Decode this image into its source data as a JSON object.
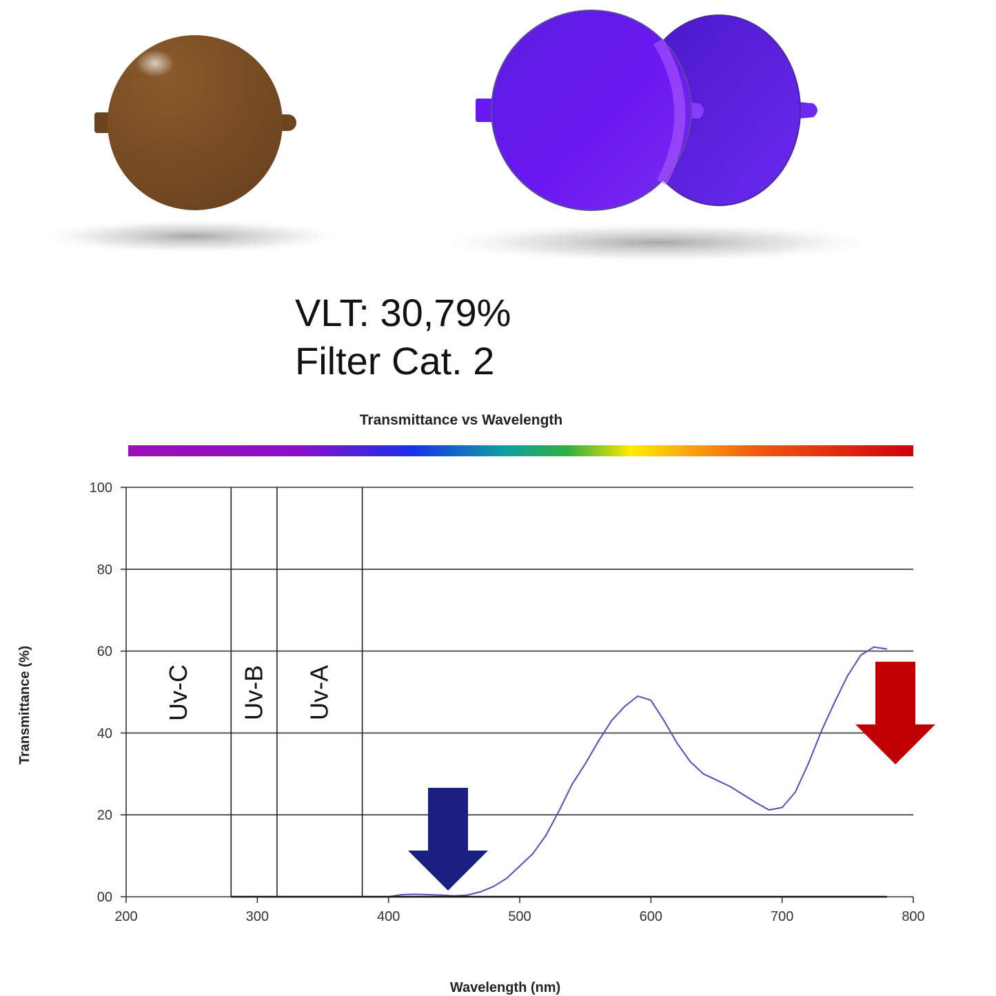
{
  "info": {
    "vlt": "VLT: 30,79%",
    "filter_category": "Filter Cat. 2"
  },
  "lenses": {
    "left_lens_color": "#7a4e22",
    "right_lens_color": "#6a1ef0"
  },
  "markers": {
    "blue_arrow_color": "#1a2080",
    "red_arrow_color": "#c00000"
  },
  "chart_data": {
    "type": "line",
    "title": "Transmittance vs Wavelength",
    "xlabel": "Wavelength (nm)",
    "ylabel": "Transmittance (%)",
    "xlim": [
      200,
      800
    ],
    "ylim": [
      0,
      100
    ],
    "x_ticks": [
      "200",
      "300",
      "400",
      "500",
      "600",
      "700",
      "800"
    ],
    "y_ticks": [
      "00",
      "20",
      "40",
      "60",
      "80",
      "100"
    ],
    "grid": "horizontal",
    "spectrum_bar": true,
    "uv_bands": [
      {
        "label": "Uv-C",
        "from": 200,
        "to": 280
      },
      {
        "label": "Uv-B",
        "from": 280,
        "to": 315
      },
      {
        "label": "Uv-A",
        "from": 315,
        "to": 380
      }
    ],
    "band_boundaries": [
      280,
      315,
      380
    ],
    "series": [
      {
        "color": "#5050b0",
        "x": [
          280,
          300,
          320,
          340,
          360,
          380,
          400,
          410,
          420,
          430,
          440,
          450,
          460,
          470,
          480,
          490,
          500,
          510,
          520,
          530,
          540,
          550,
          560,
          570,
          580,
          590,
          600,
          610,
          620,
          630,
          640,
          650,
          660,
          670,
          680,
          690,
          700,
          710,
          720,
          730,
          740,
          750,
          760,
          770,
          780
        ],
        "y": [
          0,
          0,
          0,
          0,
          0,
          0,
          0,
          0.5,
          0.6,
          0.5,
          0.4,
          0.2,
          0.4,
          1.2,
          2.5,
          4.5,
          7.5,
          10.5,
          15,
          21,
          27.5,
          32.5,
          38,
          43,
          46.5,
          49,
          48,
          43,
          37.5,
          33,
          30,
          28.5,
          27,
          25,
          23,
          21.2,
          21.8,
          25.5,
          32.5,
          40.5,
          47.5,
          54,
          59,
          61,
          60.5
        ]
      }
    ]
  }
}
